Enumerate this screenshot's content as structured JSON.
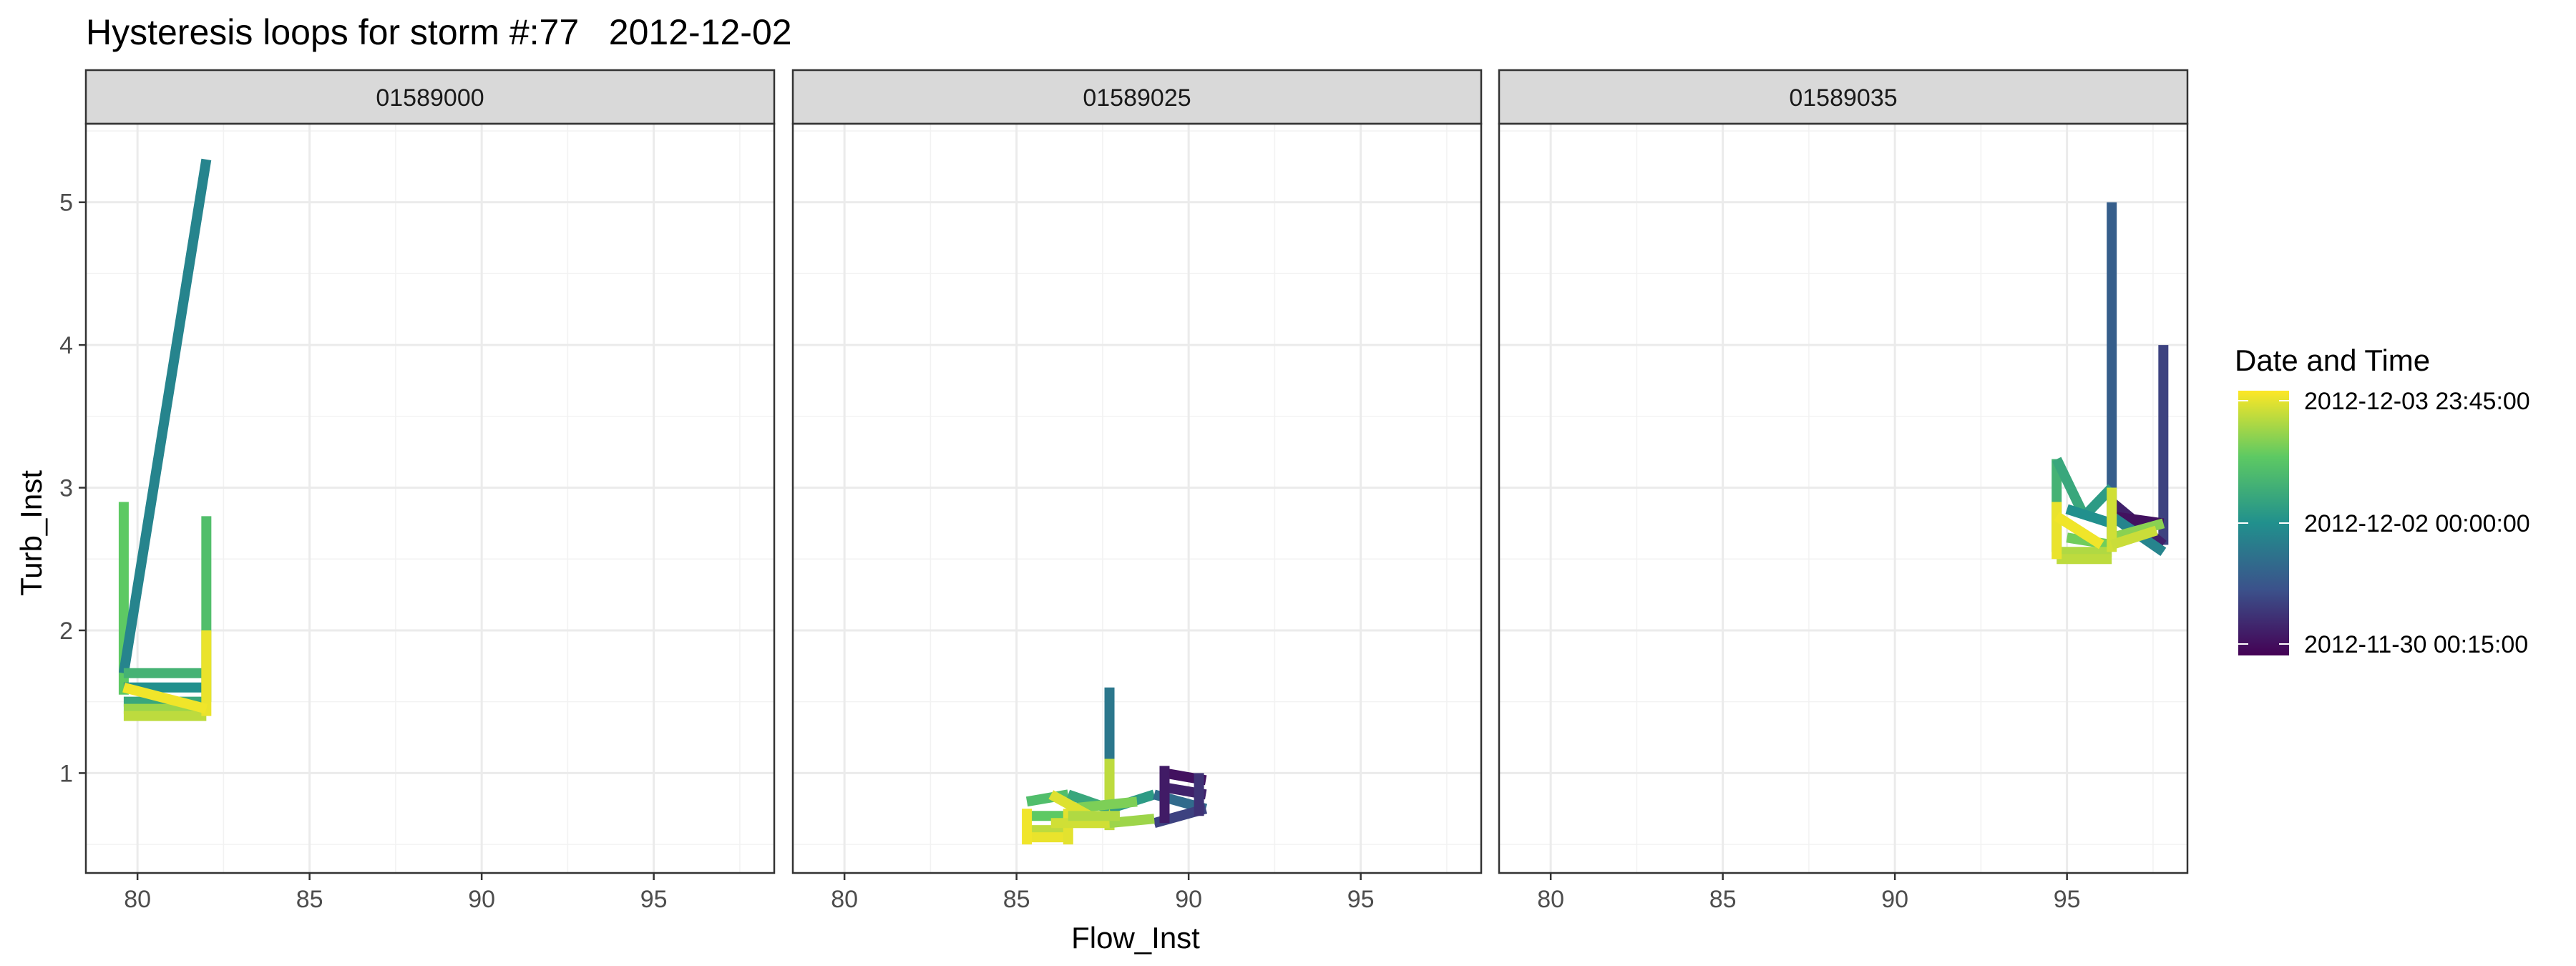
{
  "chart_data": {
    "type": "line",
    "title": "Hysteresis loops for storm #:77   2012-12-02",
    "xlabel": "Flow_Inst",
    "ylabel": "Turb_Inst",
    "xlim": [
      78.5,
      98.5
    ],
    "ylim": [
      0.3,
      5.55
    ],
    "x_ticks": [
      80,
      85,
      90,
      95
    ],
    "y_ticks": [
      1,
      2,
      3,
      4,
      5
    ],
    "grid": true,
    "legend": {
      "title": "Date and Time",
      "position": "right",
      "labels": [
        "2012-12-03 23:45:00",
        "2012-12-02 00:00:00",
        "2012-11-30 00:15:00"
      ],
      "colormap": "viridis"
    },
    "facets": [
      {
        "label": "01589000",
        "segments": [
          {
            "x": [
              79.6,
              79.6
            ],
            "y": [
              1.55,
              2.9
            ],
            "t": 0.75
          },
          {
            "x": [
              79.6,
              82.0
            ],
            "y": [
              1.7,
              5.3
            ],
            "t": 0.45
          },
          {
            "x": [
              79.6,
              82.0
            ],
            "y": [
              1.6,
              1.6
            ],
            "t": 0.5
          },
          {
            "x": [
              79.6,
              82.0
            ],
            "y": [
              1.7,
              1.7
            ],
            "t": 0.65
          },
          {
            "x": [
              82.0,
              82.0
            ],
            "y": [
              1.5,
              2.8
            ],
            "t": 0.7
          },
          {
            "x": [
              79.6,
              82.0
            ],
            "y": [
              1.5,
              1.5
            ],
            "t": 0.6
          },
          {
            "x": [
              79.6,
              82.0
            ],
            "y": [
              1.45,
              1.45
            ],
            "t": 0.85
          },
          {
            "x": [
              79.6,
              82.0
            ],
            "y": [
              1.4,
              1.4
            ],
            "t": 0.9
          },
          {
            "x": [
              82.0,
              82.0
            ],
            "y": [
              1.4,
              2.0
            ],
            "t": 0.97
          },
          {
            "x": [
              79.6,
              82.0
            ],
            "y": [
              1.6,
              1.45
            ],
            "t": 0.98
          }
        ]
      },
      {
        "label": "01589025",
        "segments": [
          {
            "x": [
              87.7,
              87.7
            ],
            "y": [
              0.65,
              1.6
            ],
            "t": 0.4
          },
          {
            "x": [
              87.7,
              87.7
            ],
            "y": [
              0.6,
              1.1
            ],
            "t": 0.9
          },
          {
            "x": [
              85.3,
              86.5
            ],
            "y": [
              0.8,
              0.85
            ],
            "t": 0.7
          },
          {
            "x": [
              86.5,
              87.7
            ],
            "y": [
              0.85,
              0.75
            ],
            "t": 0.6
          },
          {
            "x": [
              87.7,
              89.0
            ],
            "y": [
              0.75,
              0.85
            ],
            "t": 0.55
          },
          {
            "x": [
              89.0,
              90.5
            ],
            "y": [
              0.85,
              0.75
            ],
            "t": 0.35
          },
          {
            "x": [
              89.3,
              90.5
            ],
            "y": [
              1.0,
              0.95
            ],
            "t": 0.05
          },
          {
            "x": [
              89.3,
              90.5
            ],
            "y": [
              0.9,
              0.85
            ],
            "t": 0.1
          },
          {
            "x": [
              89.0,
              90.5
            ],
            "y": [
              0.65,
              0.75
            ],
            "t": 0.2
          },
          {
            "x": [
              90.3,
              90.3
            ],
            "y": [
              0.7,
              1.0
            ],
            "t": 0.15
          },
          {
            "x": [
              89.3,
              89.3
            ],
            "y": [
              0.65,
              1.05
            ],
            "t": 0.08
          },
          {
            "x": [
              85.3,
              86.5
            ],
            "y": [
              0.7,
              0.7
            ],
            "t": 0.75
          },
          {
            "x": [
              86.5,
              88.5
            ],
            "y": [
              0.75,
              0.8
            ],
            "t": 0.8
          },
          {
            "x": [
              87.7,
              89.0
            ],
            "y": [
              0.65,
              0.68
            ],
            "t": 0.85
          },
          {
            "x": [
              85.3,
              86.5
            ],
            "y": [
              0.6,
              0.6
            ],
            "t": 0.9
          },
          {
            "x": [
              85.3,
              86.5
            ],
            "y": [
              0.55,
              0.55
            ],
            "t": 0.97
          },
          {
            "x": [
              85.3,
              85.3
            ],
            "y": [
              0.5,
              0.75
            ],
            "t": 0.98
          },
          {
            "x": [
              86.5,
              86.5
            ],
            "y": [
              0.5,
              0.75
            ],
            "t": 0.96
          },
          {
            "x": [
              86.0,
              87.5
            ],
            "y": [
              0.85,
              0.65
            ],
            "t": 0.95
          },
          {
            "x": [
              86.0,
              87.7
            ],
            "y": [
              0.65,
              0.65
            ],
            "t": 0.93
          },
          {
            "x": [
              86.5,
              88.0
            ],
            "y": [
              0.7,
              0.7
            ],
            "t": 0.88
          }
        ]
      },
      {
        "label": "01589035",
        "segments": [
          {
            "x": [
              96.3,
              96.3
            ],
            "y": [
              2.6,
              5.0
            ],
            "t": 0.3
          },
          {
            "x": [
              97.8,
              97.8
            ],
            "y": [
              2.6,
              4.0
            ],
            "t": 0.2
          },
          {
            "x": [
              94.7,
              94.7
            ],
            "y": [
              2.55,
              3.2
            ],
            "t": 0.65
          },
          {
            "x": [
              94.7,
              95.5
            ],
            "y": [
              3.2,
              2.8
            ],
            "t": 0.6
          },
          {
            "x": [
              95.5,
              96.3
            ],
            "y": [
              2.8,
              3.0
            ],
            "t": 0.55
          },
          {
            "x": [
              96.3,
              97.8
            ],
            "y": [
              2.9,
              2.6
            ],
            "t": 0.1
          },
          {
            "x": [
              96.3,
              97.8
            ],
            "y": [
              2.8,
              2.75
            ],
            "t": 0.05
          },
          {
            "x": [
              96.3,
              97.8
            ],
            "y": [
              2.8,
              2.55
            ],
            "t": 0.45
          },
          {
            "x": [
              95.0,
              96.3
            ],
            "y": [
              2.85,
              2.75
            ],
            "t": 0.5
          },
          {
            "x": [
              95.0,
              96.3
            ],
            "y": [
              2.65,
              2.6
            ],
            "t": 0.78
          },
          {
            "x": [
              96.3,
              97.8
            ],
            "y": [
              2.65,
              2.75
            ],
            "t": 0.82
          },
          {
            "x": [
              94.7,
              96.3
            ],
            "y": [
              2.55,
              2.55
            ],
            "t": 0.88
          },
          {
            "x": [
              94.7,
              96.3
            ],
            "y": [
              2.5,
              2.5
            ],
            "t": 0.9
          },
          {
            "x": [
              94.7,
              94.7
            ],
            "y": [
              2.5,
              2.9
            ],
            "t": 0.97
          },
          {
            "x": [
              96.3,
              96.3
            ],
            "y": [
              2.55,
              3.0
            ],
            "t": 0.93
          },
          {
            "x": [
              94.7,
              96.0
            ],
            "y": [
              2.8,
              2.6
            ],
            "t": 0.98
          },
          {
            "x": [
              96.3,
              97.6
            ],
            "y": [
              2.6,
              2.7
            ],
            "t": 0.92
          }
        ]
      }
    ]
  }
}
